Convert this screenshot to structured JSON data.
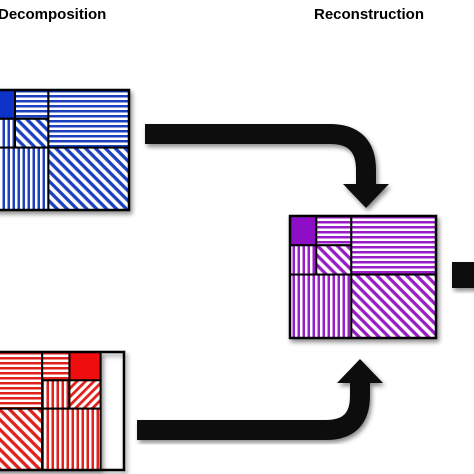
{
  "headings": {
    "left": "Decomposition",
    "right": "Reconstruction"
  },
  "colors": {
    "blue_stripe": "#1f3fc0",
    "blue_solid": "#1030c8",
    "red_stripe": "#e0201c",
    "red_solid": "#f00a0a",
    "purple_stripe": "#9a1cc8",
    "purple_solid": "#8e10c6",
    "outline": "#000000",
    "arrow": "#111111"
  },
  "panels": [
    {
      "name": "blue-wavelet-decomposition",
      "color": "blue"
    },
    {
      "name": "red-wavelet-decomposition",
      "color": "red"
    },
    {
      "name": "purple-wavelet-reconstruction",
      "color": "purple"
    }
  ],
  "arrows": [
    {
      "name": "top-merge-arrow",
      "direction": "down"
    },
    {
      "name": "bottom-merge-arrow",
      "direction": "up"
    },
    {
      "name": "output-arrow",
      "direction": "right"
    }
  ]
}
